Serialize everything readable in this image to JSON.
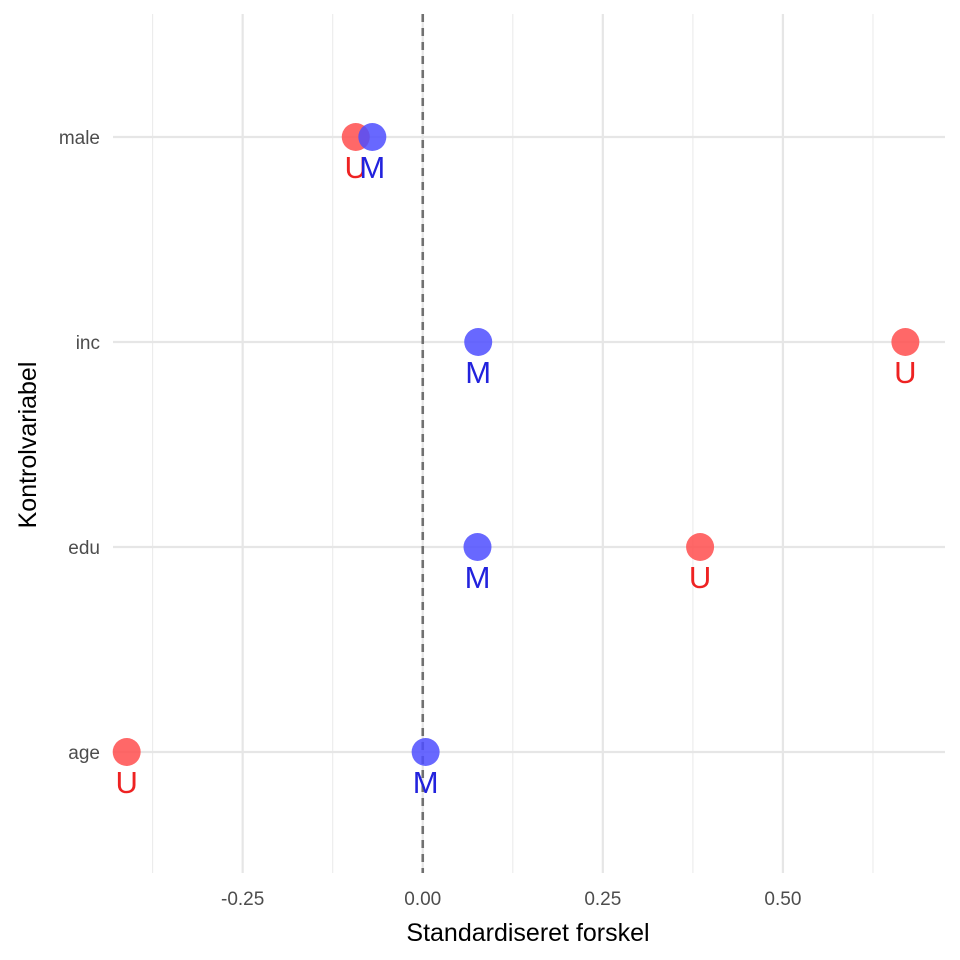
{
  "chart_data": {
    "type": "scatter",
    "title": "",
    "xlabel": "Standardiseret forskel",
    "ylabel": "Kontrolvariabel",
    "xlim": [
      -0.43,
      0.725
    ],
    "x_ticks": [
      -0.25,
      0.0,
      0.25,
      0.5
    ],
    "x_tick_labels": [
      "-0.25",
      "0.00",
      "0.25",
      "0.50"
    ],
    "categories": [
      "age",
      "edu",
      "inc",
      "male"
    ],
    "reference_line": {
      "x": 0,
      "style": "dashed"
    },
    "grid": true,
    "legend": "none",
    "series": [
      {
        "label": "U",
        "color": "#ff4d4d",
        "label_color": "#ee2222",
        "points": [
          {
            "category": "male",
            "x": -0.093
          },
          {
            "category": "inc",
            "x": 0.67
          },
          {
            "category": "edu",
            "x": 0.385
          },
          {
            "category": "age",
            "x": -0.411
          }
        ]
      },
      {
        "label": "M",
        "color": "#4d4dff",
        "label_color": "#2222dd",
        "points": [
          {
            "category": "male",
            "x": -0.07
          },
          {
            "category": "inc",
            "x": 0.077
          },
          {
            "category": "edu",
            "x": 0.076
          },
          {
            "category": "age",
            "x": 0.004
          }
        ]
      }
    ]
  }
}
